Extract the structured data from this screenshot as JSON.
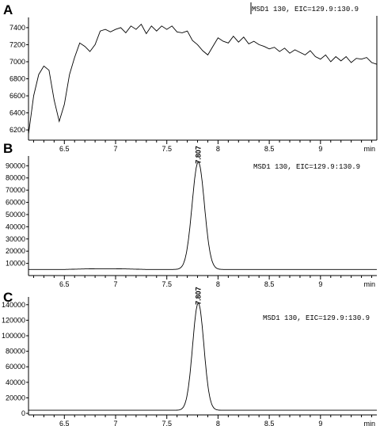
{
  "chart_data": [
    {
      "type": "line",
      "panel_label": "A",
      "annotation": "MSD1 130, EIC=129.9:130.9",
      "x_unit_label": "min",
      "xlim": [
        6.15,
        9.55
      ],
      "ylim": [
        6080,
        7520
      ],
      "yticks": [
        6200,
        6400,
        6600,
        6800,
        7000,
        7200,
        7400
      ],
      "xticks": [
        6.5,
        7,
        7.5,
        8,
        8.5,
        9
      ],
      "x": [
        6.15,
        6.2,
        6.25,
        6.3,
        6.35,
        6.4,
        6.45,
        6.5,
        6.55,
        6.6,
        6.65,
        6.7,
        6.75,
        6.8,
        6.85,
        6.9,
        6.95,
        7.0,
        7.05,
        7.1,
        7.15,
        7.2,
        7.25,
        7.3,
        7.35,
        7.4,
        7.45,
        7.5,
        7.55,
        7.6,
        7.65,
        7.7,
        7.75,
        7.8,
        7.85,
        7.9,
        7.95,
        8.0,
        8.05,
        8.1,
        8.15,
        8.2,
        8.25,
        8.3,
        8.35,
        8.4,
        8.45,
        8.5,
        8.55,
        8.6,
        8.65,
        8.7,
        8.75,
        8.8,
        8.85,
        8.9,
        8.95,
        9.0,
        9.05,
        9.1,
        9.15,
        9.2,
        9.25,
        9.3,
        9.35,
        9.4,
        9.45,
        9.5,
        9.55
      ],
      "y": [
        6150,
        6600,
        6850,
        6950,
        6900,
        6550,
        6300,
        6500,
        6850,
        7050,
        7220,
        7180,
        7120,
        7200,
        7360,
        7380,
        7350,
        7380,
        7400,
        7340,
        7420,
        7380,
        7440,
        7330,
        7420,
        7360,
        7420,
        7380,
        7420,
        7350,
        7340,
        7360,
        7250,
        7200,
        7130,
        7080,
        7180,
        7280,
        7240,
        7220,
        7300,
        7230,
        7290,
        7210,
        7240,
        7200,
        7180,
        7150,
        7170,
        7120,
        7160,
        7100,
        7140,
        7110,
        7080,
        7130,
        7060,
        7030,
        7080,
        7000,
        7060,
        7010,
        7060,
        6990,
        7040,
        7030,
        7050,
        6990,
        6970
      ]
    },
    {
      "type": "line",
      "panel_label": "B",
      "annotation": "MSD1 130, EIC=129.9:130.9",
      "peak_label": "7.807",
      "x_unit_label": "min",
      "xlim": [
        6.15,
        9.55
      ],
      "ylim": [
        0,
        98000
      ],
      "yticks": [
        10000,
        20000,
        30000,
        40000,
        50000,
        60000,
        70000,
        80000,
        90000
      ],
      "xticks": [
        6.5,
        7,
        7.5,
        8,
        8.5,
        9
      ],
      "baseline": 5000,
      "peak": {
        "center": 7.807,
        "height": 88000,
        "width": 0.06
      }
    },
    {
      "type": "line",
      "panel_label": "C",
      "annotation": "MSD1 130, EIC=129.9:130.9",
      "peak_label": "7.807",
      "x_unit_label": "min",
      "xlim": [
        6.15,
        9.55
      ],
      "ylim": [
        -2000,
        150000
      ],
      "yticks": [
        0,
        20000,
        40000,
        60000,
        80000,
        100000,
        120000,
        140000
      ],
      "xticks": [
        6.5,
        7,
        7.5,
        8,
        8.5,
        9
      ],
      "baseline": 4000,
      "peak": {
        "center": 7.807,
        "height": 138000,
        "width": 0.055
      }
    }
  ]
}
